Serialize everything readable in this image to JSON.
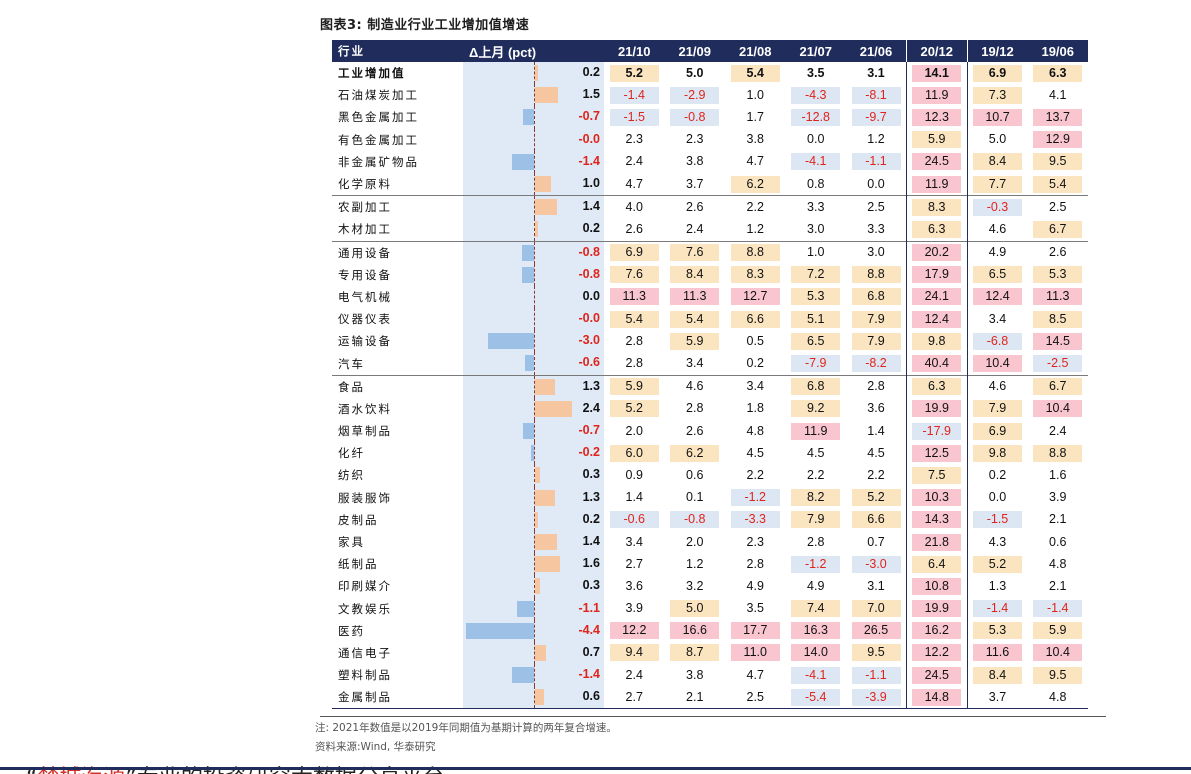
{
  "title": "图表3:   制造业行业工业增加值增速",
  "headers": {
    "name": "行业",
    "delta": "Δ上月 (pct)",
    "periods": [
      "21/10",
      "21/09",
      "21/08",
      "21/07",
      "21/06",
      "20/12",
      "19/12",
      "19/06"
    ]
  },
  "rows": [
    {
      "name": "工业增加值",
      "delta": "0.2",
      "d": 0.2,
      "bold": true,
      "vals": [
        "5.2",
        "5.0",
        "5.4",
        "3.5",
        "3.1",
        "14.1",
        "6.9",
        "6.3"
      ],
      "bg": [
        "y",
        "",
        "y",
        "",
        "",
        "p",
        "y",
        "y"
      ]
    },
    {
      "name": "石油煤炭加工",
      "delta": "1.5",
      "d": 1.5,
      "vals": [
        "-1.4",
        "-2.9",
        "1.0",
        "-4.3",
        "-8.1",
        "11.9",
        "7.3",
        "4.1"
      ],
      "bg": [
        "b",
        "b",
        "",
        "b",
        "b",
        "p",
        "y",
        ""
      ]
    },
    {
      "name": "黑色金属加工",
      "delta": "-0.7",
      "d": -0.7,
      "vals": [
        "-1.5",
        "-0.8",
        "1.7",
        "-12.8",
        "-9.7",
        "12.3",
        "10.7",
        "13.7"
      ],
      "bg": [
        "b",
        "b",
        "",
        "b",
        "b",
        "p",
        "p",
        "p"
      ]
    },
    {
      "name": "有色金属加工",
      "delta": "-0.0",
      "d": -0.0,
      "vals": [
        "2.3",
        "2.3",
        "3.8",
        "0.0",
        "1.2",
        "5.9",
        "5.0",
        "12.9"
      ],
      "bg": [
        "",
        "",
        "",
        "",
        "",
        "y",
        "",
        "p"
      ]
    },
    {
      "name": "非金属矿物品",
      "delta": "-1.4",
      "d": -1.4,
      "vals": [
        "2.4",
        "3.8",
        "4.7",
        "-4.1",
        "-1.1",
        "24.5",
        "8.4",
        "9.5"
      ],
      "bg": [
        "",
        "",
        "",
        "b",
        "b",
        "p",
        "y",
        "y"
      ]
    },
    {
      "name": "化学原料",
      "delta": "1.0",
      "d": 1.0,
      "vals": [
        "4.7",
        "3.7",
        "6.2",
        "0.8",
        "0.0",
        "11.9",
        "7.7",
        "5.4"
      ],
      "bg": [
        "",
        "",
        "y",
        "",
        "",
        "p",
        "y",
        "y"
      ]
    },
    {
      "name": "农副加工",
      "delta": "1.4",
      "d": 1.4,
      "grp": true,
      "vals": [
        "4.0",
        "2.6",
        "2.2",
        "3.3",
        "2.5",
        "8.3",
        "-0.3",
        "2.5"
      ],
      "bg": [
        "",
        "",
        "",
        "",
        "",
        "y",
        "b",
        ""
      ]
    },
    {
      "name": "木材加工",
      "delta": "0.2",
      "d": 0.2,
      "vals": [
        "2.6",
        "2.4",
        "1.2",
        "3.0",
        "3.3",
        "6.3",
        "4.6",
        "6.7"
      ],
      "bg": [
        "",
        "",
        "",
        "",
        "",
        "y",
        "",
        "y"
      ]
    },
    {
      "name": "通用设备",
      "delta": "-0.8",
      "d": -0.8,
      "grp": true,
      "vals": [
        "6.9",
        "7.6",
        "8.8",
        "1.0",
        "3.0",
        "20.2",
        "4.9",
        "2.6"
      ],
      "bg": [
        "y",
        "y",
        "y",
        "",
        "",
        "p",
        "",
        ""
      ]
    },
    {
      "name": "专用设备",
      "delta": "-0.8",
      "d": -0.8,
      "vals": [
        "7.6",
        "8.4",
        "8.3",
        "7.2",
        "8.8",
        "17.9",
        "6.5",
        "5.3"
      ],
      "bg": [
        "y",
        "y",
        "y",
        "y",
        "y",
        "p",
        "y",
        "y"
      ]
    },
    {
      "name": "电气机械",
      "delta": "0.0",
      "d": 0.0,
      "vals": [
        "11.3",
        "11.3",
        "12.7",
        "5.3",
        "6.8",
        "24.1",
        "12.4",
        "11.3"
      ],
      "bg": [
        "p",
        "p",
        "p",
        "y",
        "y",
        "p",
        "p",
        "p"
      ]
    },
    {
      "name": "仪器仪表",
      "delta": "-0.0",
      "d": -0.0,
      "vals": [
        "5.4",
        "5.4",
        "6.6",
        "5.1",
        "7.9",
        "12.4",
        "3.4",
        "8.5"
      ],
      "bg": [
        "y",
        "y",
        "y",
        "y",
        "y",
        "p",
        "",
        "y"
      ]
    },
    {
      "name": "运输设备",
      "delta": "-3.0",
      "d": -3.0,
      "vals": [
        "2.8",
        "5.9",
        "0.5",
        "6.5",
        "7.9",
        "9.8",
        "-6.8",
        "14.5"
      ],
      "bg": [
        "",
        "y",
        "",
        "y",
        "y",
        "y",
        "b",
        "p"
      ]
    },
    {
      "name": "汽车",
      "delta": "-0.6",
      "d": -0.6,
      "vals": [
        "2.8",
        "3.4",
        "0.2",
        "-7.9",
        "-8.2",
        "40.4",
        "10.4",
        "-2.5"
      ],
      "bg": [
        "",
        "",
        "",
        "b",
        "b",
        "p",
        "p",
        "b"
      ]
    },
    {
      "name": "食品",
      "delta": "1.3",
      "d": 1.3,
      "grp": true,
      "vals": [
        "5.9",
        "4.6",
        "3.4",
        "6.8",
        "2.8",
        "6.3",
        "4.6",
        "6.7"
      ],
      "bg": [
        "y",
        "",
        "",
        "y",
        "",
        "y",
        "",
        "y"
      ]
    },
    {
      "name": "酒水饮料",
      "delta": "2.4",
      "d": 2.4,
      "vals": [
        "5.2",
        "2.8",
        "1.8",
        "9.2",
        "3.6",
        "19.9",
        "7.9",
        "10.4"
      ],
      "bg": [
        "y",
        "",
        "",
        "y",
        "",
        "p",
        "y",
        "p"
      ]
    },
    {
      "name": "烟草制品",
      "delta": "-0.7",
      "d": -0.7,
      "vals": [
        "2.0",
        "2.6",
        "4.8",
        "11.9",
        "1.4",
        "-17.9",
        "6.9",
        "2.4"
      ],
      "bg": [
        "",
        "",
        "",
        "p",
        "",
        "b",
        "y",
        ""
      ]
    },
    {
      "name": "化纤",
      "delta": "-0.2",
      "d": -0.2,
      "vals": [
        "6.0",
        "6.2",
        "4.5",
        "4.5",
        "4.5",
        "12.5",
        "9.8",
        "8.8"
      ],
      "bg": [
        "y",
        "y",
        "",
        "",
        "",
        "p",
        "y",
        "y"
      ]
    },
    {
      "name": "纺织",
      "delta": "0.3",
      "d": 0.3,
      "vals": [
        "0.9",
        "0.6",
        "2.2",
        "2.2",
        "2.2",
        "7.5",
        "0.2",
        "1.6"
      ],
      "bg": [
        "",
        "",
        "",
        "",
        "",
        "y",
        "",
        ""
      ]
    },
    {
      "name": "服装服饰",
      "delta": "1.3",
      "d": 1.3,
      "vals": [
        "1.4",
        "0.1",
        "-1.2",
        "8.2",
        "5.2",
        "10.3",
        "0.0",
        "3.9"
      ],
      "bg": [
        "",
        "",
        "b",
        "y",
        "y",
        "p",
        "",
        ""
      ]
    },
    {
      "name": "皮制品",
      "delta": "0.2",
      "d": 0.2,
      "vals": [
        "-0.6",
        "-0.8",
        "-3.3",
        "7.9",
        "6.6",
        "14.3",
        "-1.5",
        "2.1"
      ],
      "bg": [
        "b",
        "b",
        "b",
        "y",
        "y",
        "p",
        "b",
        ""
      ]
    },
    {
      "name": "家具",
      "delta": "1.4",
      "d": 1.4,
      "vals": [
        "3.4",
        "2.0",
        "2.3",
        "2.8",
        "0.7",
        "21.8",
        "4.3",
        "0.6"
      ],
      "bg": [
        "",
        "",
        "",
        "",
        "",
        "p",
        "",
        ""
      ]
    },
    {
      "name": "纸制品",
      "delta": "1.6",
      "d": 1.6,
      "vals": [
        "2.7",
        "1.2",
        "2.8",
        "-1.2",
        "-3.0",
        "6.4",
        "5.2",
        "4.8"
      ],
      "bg": [
        "",
        "",
        "",
        "b",
        "b",
        "y",
        "y",
        ""
      ]
    },
    {
      "name": "印刷媒介",
      "delta": "0.3",
      "d": 0.3,
      "vals": [
        "3.6",
        "3.2",
        "4.9",
        "4.9",
        "3.1",
        "10.8",
        "1.3",
        "2.1"
      ],
      "bg": [
        "",
        "",
        "",
        "",
        "",
        "p",
        "",
        ""
      ]
    },
    {
      "name": "文教娱乐",
      "delta": "-1.1",
      "d": -1.1,
      "vals": [
        "3.9",
        "5.0",
        "3.5",
        "7.4",
        "7.0",
        "19.9",
        "-1.4",
        "-1.4"
      ],
      "bg": [
        "",
        "y",
        "",
        "y",
        "y",
        "p",
        "b",
        "b"
      ]
    },
    {
      "name": "医药",
      "delta": "-4.4",
      "d": -4.4,
      "vals": [
        "12.2",
        "16.6",
        "17.7",
        "16.3",
        "26.5",
        "16.2",
        "5.3",
        "5.9"
      ],
      "bg": [
        "p",
        "p",
        "p",
        "p",
        "p",
        "p",
        "y",
        "y"
      ]
    },
    {
      "name": "通信电子",
      "delta": "0.7",
      "d": 0.7,
      "vals": [
        "9.4",
        "8.7",
        "11.0",
        "14.0",
        "9.5",
        "12.2",
        "11.6",
        "10.4"
      ],
      "bg": [
        "y",
        "y",
        "p",
        "p",
        "y",
        "p",
        "p",
        "p"
      ]
    },
    {
      "name": "塑料制品",
      "delta": "-1.4",
      "d": -1.4,
      "vals": [
        "2.4",
        "3.8",
        "4.7",
        "-4.1",
        "-1.1",
        "24.5",
        "8.4",
        "9.5"
      ],
      "bg": [
        "",
        "",
        "",
        "b",
        "b",
        "p",
        "y",
        "y"
      ]
    },
    {
      "name": "金属制品",
      "delta": "0.6",
      "d": 0.6,
      "vals": [
        "2.7",
        "2.1",
        "2.5",
        "-5.4",
        "-3.9",
        "14.8",
        "3.7",
        "4.8"
      ],
      "bg": [
        "",
        "",
        "",
        "b",
        "b",
        "p",
        "",
        ""
      ]
    }
  ],
  "note": "注:  2021年数值是以2019年同期值为基期计算的两年复合增速。",
  "source": "资料来源:Wind, 华泰研究",
  "footer": {
    "prefix": "“",
    "brand": "楚城海源",
    "rest": "”专业的投资研究大数据分享平台"
  },
  "colors": {
    "header_bg": "#1f2c5c",
    "neg_text": "#e0241b",
    "yellow": "#fbe5c0",
    "pink": "#f9c6cf",
    "blue": "#dde7f4"
  }
}
